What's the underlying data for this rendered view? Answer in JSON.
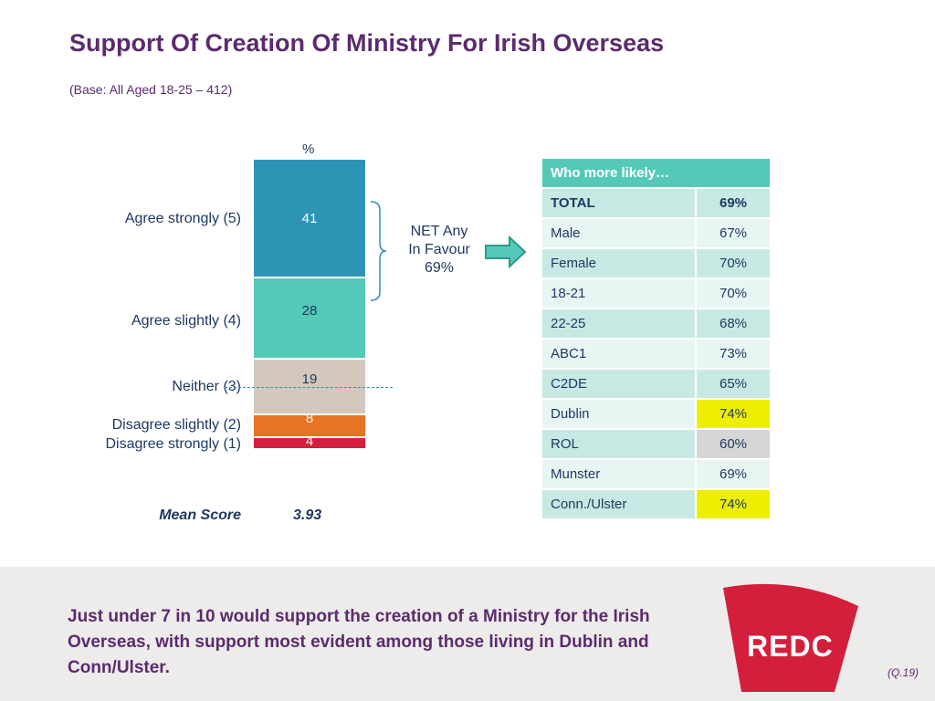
{
  "title": "Support Of Creation Of Ministry For Irish Overseas",
  "subtitle": "(Base: All Aged 18-25 – 412)",
  "chart_data": {
    "type": "bar",
    "stacked": true,
    "unit_label": "%",
    "categories": [
      "Agree strongly (5)",
      "Agree slightly (4)",
      "Neither (3)",
      "Disagree slightly (2)",
      "Disagree strongly (1)"
    ],
    "values": [
      41,
      28,
      19,
      8,
      4
    ],
    "colors": [
      "#2e94b6",
      "#55c9b7",
      "#d3c8bb",
      "#e87323",
      "#d51f3f"
    ],
    "label_colors": [
      "#ffffff",
      "#1f3864",
      "#1f3864",
      "#ffffff",
      "#ffffff"
    ],
    "net": {
      "line1": "NET Any",
      "line2": "In Favour",
      "value": "69%"
    },
    "mean": {
      "label": "Mean Score",
      "value": "3.93"
    }
  },
  "table": {
    "header": "Who more likely…",
    "rows": [
      {
        "label": "TOTAL",
        "value": "69%",
        "highlight": ""
      },
      {
        "label": "Male",
        "value": "67%",
        "highlight": ""
      },
      {
        "label": "Female",
        "value": "70%",
        "highlight": ""
      },
      {
        "label": "18-21",
        "value": "70%",
        "highlight": ""
      },
      {
        "label": "22-25",
        "value": "68%",
        "highlight": ""
      },
      {
        "label": "ABC1",
        "value": "73%",
        "highlight": ""
      },
      {
        "label": "C2DE",
        "value": "65%",
        "highlight": ""
      },
      {
        "label": "Dublin",
        "value": "74%",
        "highlight": "yellow"
      },
      {
        "label": "ROL",
        "value": "60%",
        "highlight": "grey"
      },
      {
        "label": "Munster",
        "value": "69%",
        "highlight": ""
      },
      {
        "label": "Conn./Ulster",
        "value": "74%",
        "highlight": "yellow"
      }
    ]
  },
  "footer": {
    "summary": "Just under 7 in 10 would support the creation of a Ministry for the Irish Overseas, with support most evident among those living in Dublin and Conn/Ulster.",
    "logo_text": "REDC",
    "question_ref": "(Q.19)"
  }
}
